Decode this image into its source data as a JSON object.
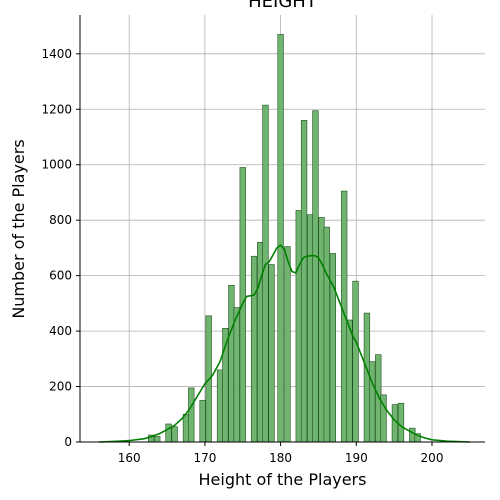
{
  "chart_data": {
    "type": "bar",
    "title": "HEIGHT",
    "xlabel": "Height of the Players",
    "ylabel": "Number of the Players",
    "xlim": [
      153.5,
      207
    ],
    "ylim": [
      0,
      1540
    ],
    "xticks": [
      160,
      170,
      180,
      190,
      200
    ],
    "yticks": [
      0,
      200,
      400,
      600,
      800,
      1000,
      1200,
      1400
    ],
    "grid": true,
    "bin_width": 0.75,
    "bar_color": "#6fb56f",
    "bar_edge": "#1f4f1f",
    "kde_color": "#008000",
    "bars": [
      {
        "x": 162.9,
        "y": 25
      },
      {
        "x": 163.7,
        "y": 20
      },
      {
        "x": 165.2,
        "y": 65
      },
      {
        "x": 166.0,
        "y": 55
      },
      {
        "x": 167.5,
        "y": 100
      },
      {
        "x": 168.2,
        "y": 195
      },
      {
        "x": 169.7,
        "y": 150
      },
      {
        "x": 170.5,
        "y": 455
      },
      {
        "x": 172.0,
        "y": 260
      },
      {
        "x": 172.7,
        "y": 410
      },
      {
        "x": 173.5,
        "y": 565
      },
      {
        "x": 174.2,
        "y": 485
      },
      {
        "x": 175.0,
        "y": 990
      },
      {
        "x": 176.5,
        "y": 670
      },
      {
        "x": 177.3,
        "y": 720
      },
      {
        "x": 178.0,
        "y": 1215
      },
      {
        "x": 178.8,
        "y": 640
      },
      {
        "x": 180.0,
        "y": 1470
      },
      {
        "x": 180.9,
        "y": 705
      },
      {
        "x": 182.4,
        "y": 835
      },
      {
        "x": 183.1,
        "y": 1160
      },
      {
        "x": 183.9,
        "y": 820
      },
      {
        "x": 184.6,
        "y": 1195
      },
      {
        "x": 185.4,
        "y": 810
      },
      {
        "x": 186.1,
        "y": 775
      },
      {
        "x": 186.9,
        "y": 680
      },
      {
        "x": 188.4,
        "y": 905
      },
      {
        "x": 189.1,
        "y": 440
      },
      {
        "x": 189.9,
        "y": 580
      },
      {
        "x": 191.4,
        "y": 465
      },
      {
        "x": 192.1,
        "y": 290
      },
      {
        "x": 192.9,
        "y": 315
      },
      {
        "x": 193.6,
        "y": 170
      },
      {
        "x": 195.1,
        "y": 135
      },
      {
        "x": 195.9,
        "y": 140
      },
      {
        "x": 197.4,
        "y": 50
      },
      {
        "x": 198.1,
        "y": 30
      }
    ],
    "kde": {
      "x": [
        156,
        158,
        160,
        162,
        163,
        164,
        165,
        166,
        167,
        168,
        169,
        170,
        171,
        172,
        173,
        174,
        175,
        175.5,
        176.5,
        177,
        177.5,
        178,
        178.5,
        179,
        179.5,
        180,
        180.5,
        181,
        181.5,
        182,
        182.5,
        183,
        183.5,
        184,
        184.5,
        185,
        185.5,
        186,
        187,
        188,
        188.5,
        189,
        189.5,
        190,
        191,
        192,
        193,
        194,
        195,
        196,
        197,
        198,
        199,
        200,
        202,
        205
      ],
      "y": [
        0,
        2,
        5,
        12,
        20,
        30,
        45,
        60,
        85,
        120,
        165,
        210,
        240,
        290,
        370,
        440,
        500,
        525,
        530,
        555,
        600,
        640,
        650,
        675,
        700,
        710,
        695,
        650,
        615,
        610,
        640,
        665,
        670,
        672,
        672,
        665,
        640,
        610,
        560,
        490,
        455,
        420,
        385,
        360,
        290,
        220,
        160,
        115,
        80,
        55,
        40,
        25,
        15,
        8,
        3,
        0
      ]
    }
  }
}
